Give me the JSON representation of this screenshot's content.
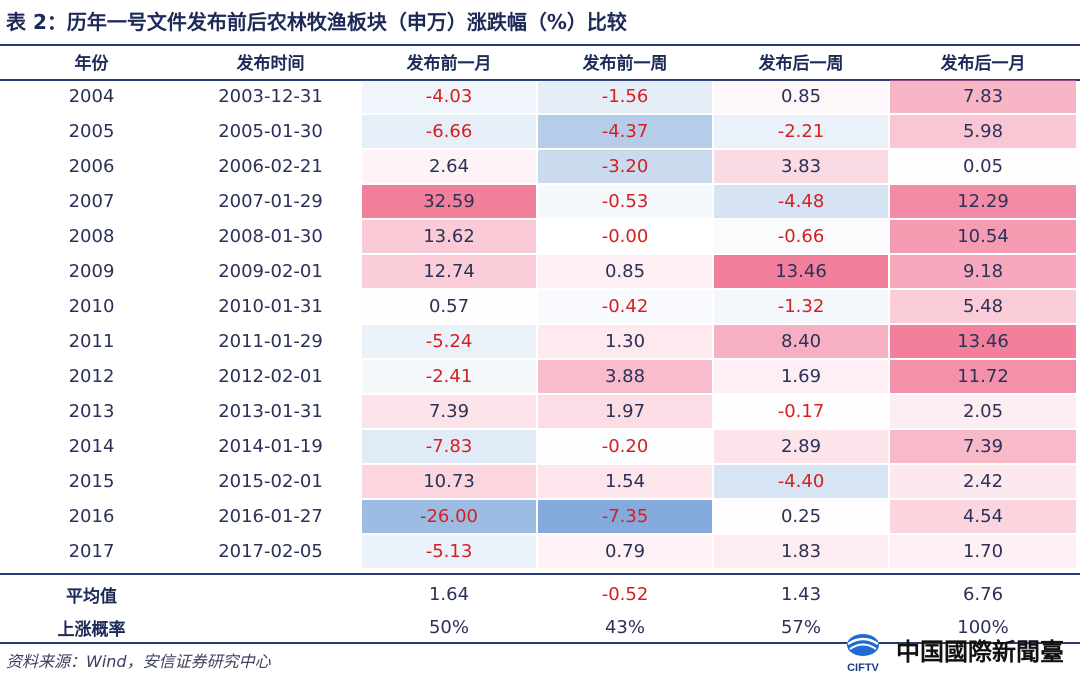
{
  "title": "表 2：历年一号文件发布前后农林牧渔板块（申万）涨跌幅（%）比较",
  "columns": [
    "年份",
    "发布时间",
    "发布前一月",
    "发布前一周",
    "发布后一周",
    "发布后一月"
  ],
  "rows": [
    [
      "2004",
      "2003-12-31",
      "-4.03",
      "-1.56",
      "0.85",
      "7.83"
    ],
    [
      "2005",
      "2005-01-30",
      "-6.66",
      "-4.37",
      "-2.21",
      "5.98"
    ],
    [
      "2006",
      "2006-02-21",
      "2.64",
      "-3.20",
      "3.83",
      "0.05"
    ],
    [
      "2007",
      "2007-01-29",
      "32.59",
      "-0.53",
      "-4.48",
      "12.29"
    ],
    [
      "2008",
      "2008-01-30",
      "13.62",
      "-0.00",
      "-0.66",
      "10.54"
    ],
    [
      "2009",
      "2009-02-01",
      "12.74",
      "0.85",
      "13.46",
      "9.18"
    ],
    [
      "2010",
      "2010-01-31",
      "0.57",
      "-0.42",
      "-1.32",
      "5.48"
    ],
    [
      "2011",
      "2011-01-29",
      "-5.24",
      "1.30",
      "8.40",
      "13.46"
    ],
    [
      "2012",
      "2012-02-01",
      "-2.41",
      "3.88",
      "1.69",
      "11.72"
    ],
    [
      "2013",
      "2013-01-31",
      "7.39",
      "1.97",
      "-0.17",
      "2.05"
    ],
    [
      "2014",
      "2014-01-19",
      "-7.83",
      "-0.20",
      "2.89",
      "7.39"
    ],
    [
      "2015",
      "2015-02-01",
      "10.73",
      "1.54",
      "-4.40",
      "2.42"
    ],
    [
      "2016",
      "2016-01-27",
      "-26.00",
      "-7.35",
      "0.25",
      "4.54"
    ],
    [
      "2017",
      "2017-02-05",
      "-5.13",
      "0.79",
      "1.83",
      "1.70"
    ]
  ],
  "summary": [
    {
      "label": "平均值",
      "values": [
        "1.64",
        "-0.52",
        "1.43",
        "6.76"
      ]
    },
    {
      "label": "上涨概率",
      "values": [
        "50%",
        "43%",
        "57%",
        "100%"
      ]
    }
  ],
  "source": "资料来源：Wind，安信证券研究中心",
  "logo_text": "中国國際新聞臺",
  "logo_badge": "CIFTV",
  "colors": {
    "header_rule": "#2b3a73",
    "negative_text": "#d42020",
    "positive_fill": "#f06a8c",
    "negative_fill": "#5b8fd0"
  }
}
